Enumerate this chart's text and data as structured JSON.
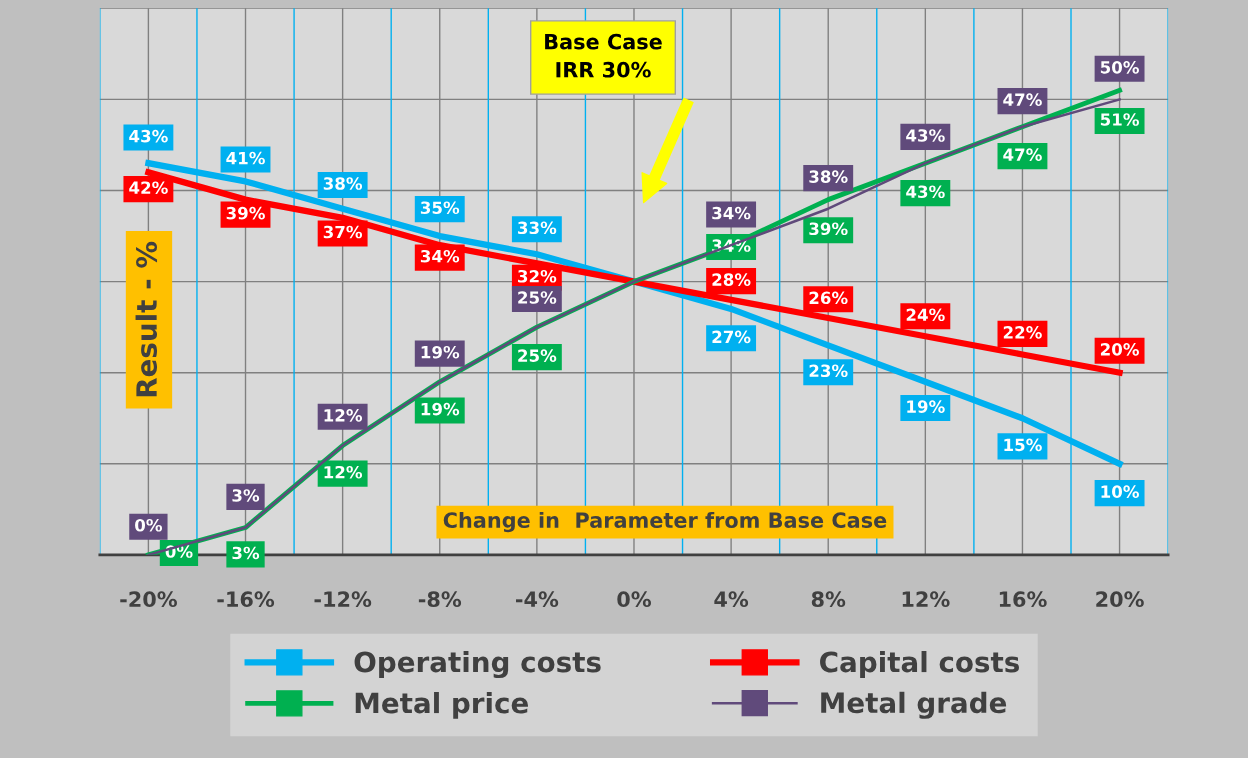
{
  "chart_data": {
    "type": "line",
    "xlabel": "Change in  Parameter from Base Case",
    "ylabel": "Result - %",
    "categories": [
      "-20%",
      "-16%",
      "-12%",
      "-8%",
      "-4%",
      "0%",
      "4%",
      "8%",
      "12%",
      "16%",
      "20%"
    ],
    "series": [
      {
        "name": "Operating costs",
        "color": "#00b0f0",
        "values": [
          43,
          41,
          38,
          35,
          33,
          30,
          27,
          23,
          19,
          15,
          10
        ],
        "value_labels": [
          "43%",
          "41%",
          "38%",
          "35%",
          "33%",
          null,
          "27%",
          "23%",
          "19%",
          "15%",
          "10%"
        ]
      },
      {
        "name": "Capital costs",
        "color": "#ff0000",
        "values": [
          42,
          39,
          37,
          34,
          32,
          30,
          28,
          26,
          24,
          22,
          20
        ],
        "value_labels": [
          "42%",
          "39%",
          "37%",
          "34%",
          "32%",
          null,
          "28%",
          "26%",
          "24%",
          "22%",
          "20%"
        ]
      },
      {
        "name": "Metal price",
        "color": "#00b050",
        "values": [
          0,
          3,
          12,
          19,
          25,
          30,
          34,
          39,
          43,
          47,
          51
        ],
        "value_labels": [
          "0%",
          "3%",
          "12%",
          "19%",
          "25%",
          null,
          "34%",
          "39%",
          "43%",
          "47%",
          "51%"
        ]
      },
      {
        "name": "Metal grade",
        "color": "#604a7b",
        "values": [
          0,
          3,
          12,
          19,
          25,
          30,
          34,
          38,
          43,
          47,
          50
        ],
        "value_labels": [
          "0%",
          "3%",
          "12%",
          "19%",
          "25%",
          null,
          "34%",
          "38%",
          "43%",
          "47%",
          "50%"
        ]
      }
    ],
    "ylim": [
      0,
      60
    ],
    "yticks": [
      {
        "value": 0,
        "label": null
      },
      {
        "value": 10,
        "label": null
      },
      {
        "value": 20,
        "label": null
      },
      {
        "value": 30,
        "label": null
      },
      {
        "value": 40,
        "label": null
      },
      {
        "value": 50,
        "label": null
      },
      {
        "value": 60,
        "label": null
      }
    ],
    "tick_labels": "x",
    "annotations": [
      "Base Case\nIRR 30%"
    ],
    "grid": true,
    "legend": "bottom",
    "marker": "none",
    "line_style": "solid"
  }
}
